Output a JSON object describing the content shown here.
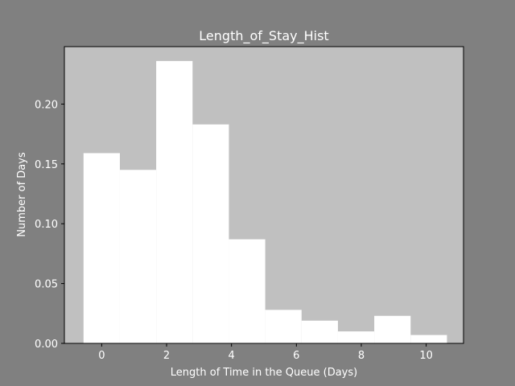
{
  "chart_data": {
    "type": "bar",
    "title": "Length_of_Stay_Hist",
    "xlabel": "Length of Time in the Queue (Days)",
    "ylabel": "Number of Days",
    "xlim": [
      -1.15,
      11.15
    ],
    "ylim": [
      0,
      0.248
    ],
    "xticks": [
      0,
      2,
      4,
      6,
      8,
      10
    ],
    "yticks": [
      0.0,
      0.05,
      0.1,
      0.15,
      0.2
    ],
    "bin_edges": [
      -0.56,
      0.56,
      1.68,
      2.8,
      3.92,
      5.04,
      6.16,
      7.28,
      8.4,
      9.52,
      10.64
    ],
    "values": [
      0.159,
      0.145,
      0.236,
      0.183,
      0.087,
      0.028,
      0.019,
      0.01,
      0.023,
      0.007
    ],
    "grid": false,
    "colors": {
      "figure_bg": "#808080",
      "axes_bg": "#c0c0c0",
      "bar": "#ffffff",
      "text": "#ffffff",
      "spine": "#000000"
    }
  }
}
